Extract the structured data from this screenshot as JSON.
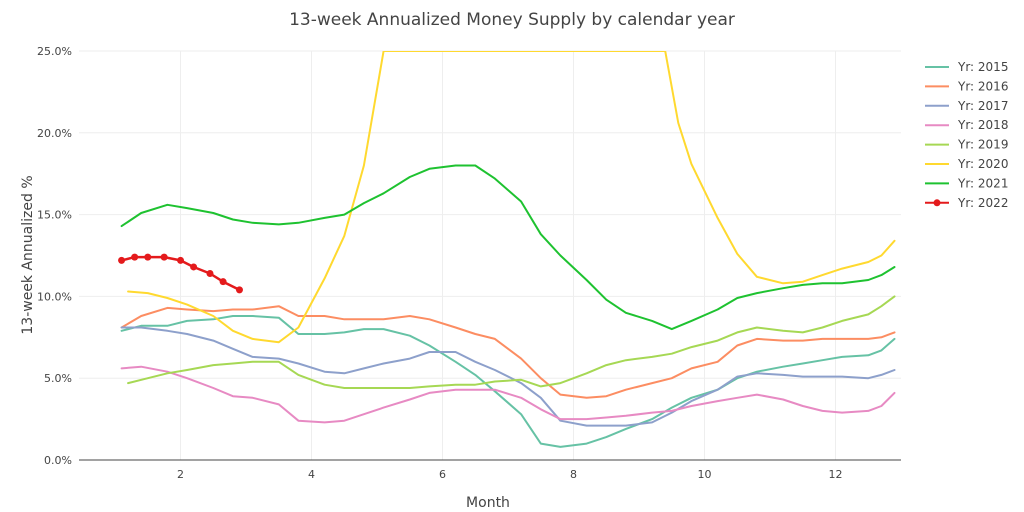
{
  "chart_data": {
    "type": "line",
    "title": "13-week Annualized Money Supply by calendar year",
    "xlabel": "Month",
    "ylabel": "13-week Annualized %",
    "xlim": [
      0.45,
      13.0
    ],
    "ylim": [
      0,
      25
    ],
    "x_ticks": [
      2,
      4,
      6,
      8,
      10,
      12
    ],
    "x_tick_labels": [
      "2",
      "4",
      "6",
      "8",
      "10",
      "12"
    ],
    "y_ticks": [
      0,
      5,
      10,
      15,
      20,
      25
    ],
    "y_tick_labels": [
      "0.0%",
      "5.0%",
      "10.0%",
      "15.0%",
      "20.0%",
      "25.0%"
    ],
    "grid": true,
    "legend_position": "right",
    "series": [
      {
        "name": "Yr: 2015",
        "color": "#66c2a5",
        "markers": false,
        "points": [
          [
            1.1,
            7.9
          ],
          [
            1.4,
            8.2
          ],
          [
            1.8,
            8.2
          ],
          [
            2.1,
            8.5
          ],
          [
            2.5,
            8.6
          ],
          [
            2.8,
            8.8
          ],
          [
            3.1,
            8.8
          ],
          [
            3.5,
            8.7
          ],
          [
            3.8,
            7.7
          ],
          [
            4.2,
            7.7
          ],
          [
            4.5,
            7.8
          ],
          [
            4.8,
            8.0
          ],
          [
            5.1,
            8.0
          ],
          [
            5.5,
            7.6
          ],
          [
            5.8,
            7.0
          ],
          [
            6.2,
            6.0
          ],
          [
            6.5,
            5.2
          ],
          [
            6.8,
            4.2
          ],
          [
            7.2,
            2.8
          ],
          [
            7.5,
            1.0
          ],
          [
            7.8,
            0.8
          ],
          [
            8.2,
            1.0
          ],
          [
            8.5,
            1.4
          ],
          [
            8.8,
            1.9
          ],
          [
            9.2,
            2.5
          ],
          [
            9.5,
            3.2
          ],
          [
            9.8,
            3.8
          ],
          [
            10.2,
            4.3
          ],
          [
            10.5,
            5.0
          ],
          [
            10.8,
            5.4
          ],
          [
            11.2,
            5.7
          ],
          [
            11.5,
            5.9
          ],
          [
            11.8,
            6.1
          ],
          [
            12.1,
            6.3
          ],
          [
            12.5,
            6.4
          ],
          [
            12.7,
            6.7
          ],
          [
            12.9,
            7.4
          ]
        ]
      },
      {
        "name": "Yr: 2016",
        "color": "#fc8d62",
        "markers": false,
        "points": [
          [
            1.1,
            8.1
          ],
          [
            1.4,
            8.8
          ],
          [
            1.8,
            9.3
          ],
          [
            2.1,
            9.2
          ],
          [
            2.5,
            9.1
          ],
          [
            2.8,
            9.2
          ],
          [
            3.1,
            9.2
          ],
          [
            3.5,
            9.4
          ],
          [
            3.8,
            8.8
          ],
          [
            4.2,
            8.8
          ],
          [
            4.5,
            8.6
          ],
          [
            4.8,
            8.6
          ],
          [
            5.1,
            8.6
          ],
          [
            5.5,
            8.8
          ],
          [
            5.8,
            8.6
          ],
          [
            6.2,
            8.1
          ],
          [
            6.5,
            7.7
          ],
          [
            6.8,
            7.4
          ],
          [
            7.2,
            6.2
          ],
          [
            7.5,
            5.0
          ],
          [
            7.8,
            4.0
          ],
          [
            8.2,
            3.8
          ],
          [
            8.5,
            3.9
          ],
          [
            8.8,
            4.3
          ],
          [
            9.2,
            4.7
          ],
          [
            9.5,
            5.0
          ],
          [
            9.8,
            5.6
          ],
          [
            10.2,
            6.0
          ],
          [
            10.5,
            7.0
          ],
          [
            10.8,
            7.4
          ],
          [
            11.2,
            7.3
          ],
          [
            11.5,
            7.3
          ],
          [
            11.8,
            7.4
          ],
          [
            12.1,
            7.4
          ],
          [
            12.5,
            7.4
          ],
          [
            12.7,
            7.5
          ],
          [
            12.9,
            7.8
          ]
        ]
      },
      {
        "name": "Yr: 2017",
        "color": "#8da0cb",
        "markers": false,
        "points": [
          [
            1.1,
            8.1
          ],
          [
            1.4,
            8.1
          ],
          [
            1.8,
            7.9
          ],
          [
            2.1,
            7.7
          ],
          [
            2.5,
            7.3
          ],
          [
            2.8,
            6.8
          ],
          [
            3.1,
            6.3
          ],
          [
            3.5,
            6.2
          ],
          [
            3.8,
            5.9
          ],
          [
            4.2,
            5.4
          ],
          [
            4.5,
            5.3
          ],
          [
            4.8,
            5.6
          ],
          [
            5.1,
            5.9
          ],
          [
            5.5,
            6.2
          ],
          [
            5.8,
            6.6
          ],
          [
            6.2,
            6.6
          ],
          [
            6.5,
            6.0
          ],
          [
            6.8,
            5.5
          ],
          [
            7.2,
            4.7
          ],
          [
            7.5,
            3.8
          ],
          [
            7.8,
            2.4
          ],
          [
            8.2,
            2.1
          ],
          [
            8.5,
            2.1
          ],
          [
            8.8,
            2.1
          ],
          [
            9.2,
            2.3
          ],
          [
            9.5,
            2.9
          ],
          [
            9.8,
            3.6
          ],
          [
            10.2,
            4.3
          ],
          [
            10.5,
            5.1
          ],
          [
            10.8,
            5.3
          ],
          [
            11.2,
            5.2
          ],
          [
            11.5,
            5.1
          ],
          [
            11.8,
            5.1
          ],
          [
            12.1,
            5.1
          ],
          [
            12.5,
            5.0
          ],
          [
            12.7,
            5.2
          ],
          [
            12.9,
            5.5
          ]
        ]
      },
      {
        "name": "Yr: 2018",
        "color": "#e78ac3",
        "markers": false,
        "points": [
          [
            1.1,
            5.6
          ],
          [
            1.4,
            5.7
          ],
          [
            1.8,
            5.4
          ],
          [
            2.1,
            5.0
          ],
          [
            2.5,
            4.4
          ],
          [
            2.8,
            3.9
          ],
          [
            3.1,
            3.8
          ],
          [
            3.5,
            3.4
          ],
          [
            3.8,
            2.4
          ],
          [
            4.2,
            2.3
          ],
          [
            4.5,
            2.4
          ],
          [
            4.8,
            2.8
          ],
          [
            5.1,
            3.2
          ],
          [
            5.5,
            3.7
          ],
          [
            5.8,
            4.1
          ],
          [
            6.2,
            4.3
          ],
          [
            6.5,
            4.3
          ],
          [
            6.8,
            4.3
          ],
          [
            7.2,
            3.8
          ],
          [
            7.5,
            3.1
          ],
          [
            7.8,
            2.5
          ],
          [
            8.2,
            2.5
          ],
          [
            8.5,
            2.6
          ],
          [
            8.8,
            2.7
          ],
          [
            9.2,
            2.9
          ],
          [
            9.5,
            3.0
          ],
          [
            9.8,
            3.3
          ],
          [
            10.2,
            3.6
          ],
          [
            10.5,
            3.8
          ],
          [
            10.8,
            4.0
          ],
          [
            11.2,
            3.7
          ],
          [
            11.5,
            3.3
          ],
          [
            11.8,
            3.0
          ],
          [
            12.1,
            2.9
          ],
          [
            12.5,
            3.0
          ],
          [
            12.7,
            3.3
          ],
          [
            12.9,
            4.1
          ]
        ]
      },
      {
        "name": "Yr: 2019",
        "color": "#a6d854",
        "markers": false,
        "points": [
          [
            1.2,
            4.7
          ],
          [
            1.5,
            5.0
          ],
          [
            1.8,
            5.3
          ],
          [
            2.1,
            5.5
          ],
          [
            2.5,
            5.8
          ],
          [
            2.8,
            5.9
          ],
          [
            3.1,
            6.0
          ],
          [
            3.5,
            6.0
          ],
          [
            3.8,
            5.2
          ],
          [
            4.2,
            4.6
          ],
          [
            4.5,
            4.4
          ],
          [
            4.8,
            4.4
          ],
          [
            5.1,
            4.4
          ],
          [
            5.5,
            4.4
          ],
          [
            5.8,
            4.5
          ],
          [
            6.2,
            4.6
          ],
          [
            6.5,
            4.6
          ],
          [
            6.8,
            4.8
          ],
          [
            7.2,
            4.9
          ],
          [
            7.5,
            4.5
          ],
          [
            7.8,
            4.7
          ],
          [
            8.2,
            5.3
          ],
          [
            8.5,
            5.8
          ],
          [
            8.8,
            6.1
          ],
          [
            9.2,
            6.3
          ],
          [
            9.5,
            6.5
          ],
          [
            9.8,
            6.9
          ],
          [
            10.2,
            7.3
          ],
          [
            10.5,
            7.8
          ],
          [
            10.8,
            8.1
          ],
          [
            11.2,
            7.9
          ],
          [
            11.5,
            7.8
          ],
          [
            11.8,
            8.1
          ],
          [
            12.1,
            8.5
          ],
          [
            12.5,
            8.9
          ],
          [
            12.7,
            9.4
          ],
          [
            12.9,
            10.0
          ]
        ]
      },
      {
        "name": "Yr: 2020",
        "color": "#ffd92f",
        "markers": false,
        "points": [
          [
            1.2,
            10.3
          ],
          [
            1.5,
            10.2
          ],
          [
            1.8,
            9.9
          ],
          [
            2.1,
            9.5
          ],
          [
            2.5,
            8.8
          ],
          [
            2.8,
            7.9
          ],
          [
            3.1,
            7.4
          ],
          [
            3.5,
            7.2
          ],
          [
            3.8,
            8.1
          ],
          [
            4.2,
            11.1
          ],
          [
            4.5,
            13.7
          ],
          [
            4.8,
            18.0
          ],
          [
            5.1,
            25.0
          ],
          [
            9.4,
            25.0
          ],
          [
            9.6,
            20.6
          ],
          [
            9.8,
            18.1
          ],
          [
            10.2,
            14.8
          ],
          [
            10.5,
            12.6
          ],
          [
            10.8,
            11.2
          ],
          [
            11.2,
            10.8
          ],
          [
            11.5,
            10.9
          ],
          [
            11.8,
            11.3
          ],
          [
            12.1,
            11.7
          ],
          [
            12.5,
            12.1
          ],
          [
            12.7,
            12.5
          ],
          [
            12.9,
            13.4
          ]
        ]
      },
      {
        "name": "Yr: 2021",
        "color": "#1ec230",
        "markers": false,
        "points": [
          [
            1.1,
            14.3
          ],
          [
            1.4,
            15.1
          ],
          [
            1.8,
            15.6
          ],
          [
            2.1,
            15.4
          ],
          [
            2.5,
            15.1
          ],
          [
            2.8,
            14.7
          ],
          [
            3.1,
            14.5
          ],
          [
            3.5,
            14.4
          ],
          [
            3.8,
            14.5
          ],
          [
            4.2,
            14.8
          ],
          [
            4.5,
            15.0
          ],
          [
            4.8,
            15.7
          ],
          [
            5.1,
            16.3
          ],
          [
            5.5,
            17.3
          ],
          [
            5.8,
            17.8
          ],
          [
            6.2,
            18.0
          ],
          [
            6.5,
            18.0
          ],
          [
            6.8,
            17.2
          ],
          [
            7.2,
            15.8
          ],
          [
            7.5,
            13.8
          ],
          [
            7.8,
            12.5
          ],
          [
            8.2,
            11.0
          ],
          [
            8.5,
            9.8
          ],
          [
            8.8,
            9.0
          ],
          [
            9.2,
            8.5
          ],
          [
            9.5,
            8.0
          ],
          [
            9.8,
            8.5
          ],
          [
            10.2,
            9.2
          ],
          [
            10.5,
            9.9
          ],
          [
            10.8,
            10.2
          ],
          [
            11.2,
            10.5
          ],
          [
            11.5,
            10.7
          ],
          [
            11.8,
            10.8
          ],
          [
            12.1,
            10.8
          ],
          [
            12.5,
            11.0
          ],
          [
            12.7,
            11.3
          ],
          [
            12.9,
            11.8
          ]
        ]
      },
      {
        "name": "Yr: 2022",
        "color": "#e41a1c",
        "markers": true,
        "points": [
          [
            1.1,
            12.2
          ],
          [
            1.3,
            12.4
          ],
          [
            1.5,
            12.4
          ],
          [
            1.75,
            12.4
          ],
          [
            2.0,
            12.2
          ],
          [
            2.2,
            11.8
          ],
          [
            2.45,
            11.4
          ],
          [
            2.65,
            10.9
          ],
          [
            2.9,
            10.4
          ]
        ]
      }
    ]
  }
}
